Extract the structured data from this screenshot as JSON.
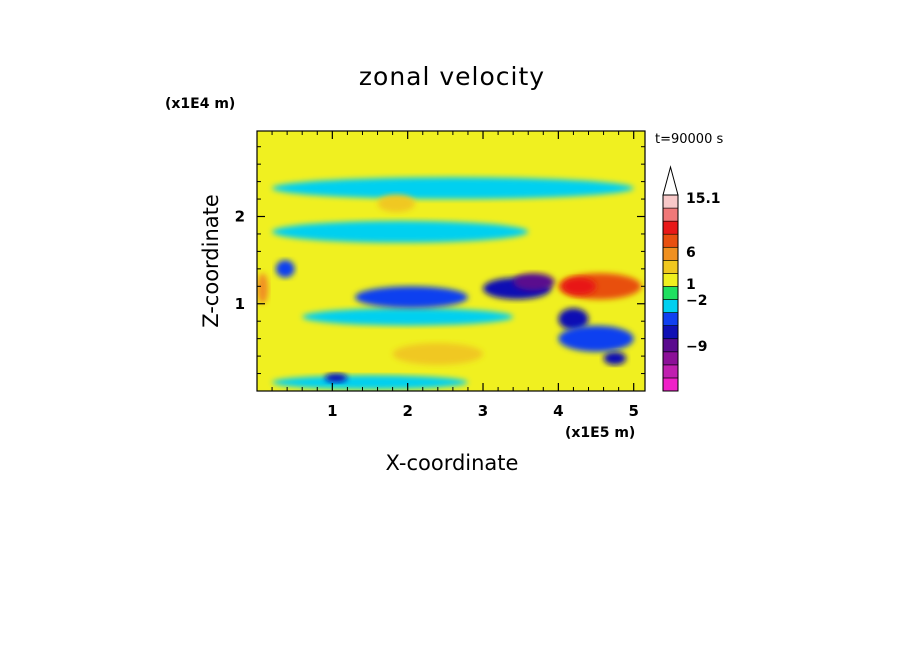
{
  "chart_data": {
    "type": "heatmap",
    "title": "zonal velocity",
    "xlabel": "X-coordinate",
    "ylabel": "Z-coordinate",
    "x_unit": "(x1E5 m)",
    "y_unit": "(x1E4 m)",
    "time_label": "t=90000 s",
    "xlim": [
      0,
      5.15
    ],
    "ylim": [
      0,
      2.98
    ],
    "x_ticks": [
      "1",
      "2",
      "3",
      "4",
      "5"
    ],
    "y_ticks": [
      "1",
      "2"
    ],
    "colorbar": {
      "labels": [
        "15.1",
        "6",
        "1",
        "−2",
        "−9"
      ],
      "levels": [
        -15,
        -12,
        -9,
        -6,
        -3,
        -2,
        -1,
        0,
        1,
        2,
        3,
        6,
        9,
        12,
        15.1,
        20
      ],
      "colors": [
        "#f020c8",
        "#c020b0",
        "#8c1098",
        "#5a0a8e",
        "#1010b4",
        "#1040f0",
        "#00d0f0",
        "#20e060",
        "#f0f020",
        "#f0c820",
        "#f09020",
        "#e85010",
        "#e81818",
        "#f07878",
        "#f8c8c8"
      ]
    },
    "regions": [
      {
        "value": 1.5,
        "x": [
          0,
          5.15
        ],
        "z": [
          0,
          2.98
        ]
      },
      {
        "value": -0.5,
        "x": [
          0.2,
          5.0
        ],
        "z": [
          2.2,
          2.45
        ]
      },
      {
        "value": -0.5,
        "x": [
          0.2,
          3.6
        ],
        "z": [
          1.7,
          1.95
        ]
      },
      {
        "value": -0.5,
        "x": [
          0.6,
          3.4
        ],
        "z": [
          0.75,
          0.95
        ]
      },
      {
        "value": -0.5,
        "x": [
          0.2,
          2.8
        ],
        "z": [
          0.02,
          0.18
        ]
      },
      {
        "value": -1.5,
        "x": [
          1.3,
          2.8
        ],
        "z": [
          0.95,
          1.2
        ]
      },
      {
        "value": 2.5,
        "x": [
          1.8,
          3.0
        ],
        "z": [
          0.3,
          0.55
        ]
      },
      {
        "value": 2.5,
        "x": [
          1.6,
          2.1
        ],
        "z": [
          2.05,
          2.25
        ]
      },
      {
        "value": -3,
        "x": [
          3.0,
          3.9
        ],
        "z": [
          1.05,
          1.3
        ]
      },
      {
        "value": -4,
        "x": [
          3.4,
          3.95
        ],
        "z": [
          1.15,
          1.35
        ]
      },
      {
        "value": 7.5,
        "x": [
          4.0,
          5.1
        ],
        "z": [
          1.05,
          1.35
        ]
      },
      {
        "value": 10,
        "x": [
          4.05,
          4.5
        ],
        "z": [
          1.1,
          1.3
        ]
      },
      {
        "value": -3,
        "x": [
          4.0,
          4.4
        ],
        "z": [
          0.7,
          0.95
        ]
      },
      {
        "value": -3,
        "x": [
          4.6,
          4.9
        ],
        "z": [
          0.3,
          0.45
        ]
      },
      {
        "value": -1.5,
        "x": [
          4.0,
          5.0
        ],
        "z": [
          0.45,
          0.75
        ]
      },
      {
        "value": -3,
        "x": [
          0.9,
          1.2
        ],
        "z": [
          0.1,
          0.2
        ]
      },
      {
        "value": -1.5,
        "x": [
          0.25,
          0.5
        ],
        "z": [
          1.3,
          1.5
        ]
      },
      {
        "value": 4,
        "x": [
          0,
          0.15
        ],
        "z": [
          1.0,
          1.35
        ]
      }
    ]
  }
}
